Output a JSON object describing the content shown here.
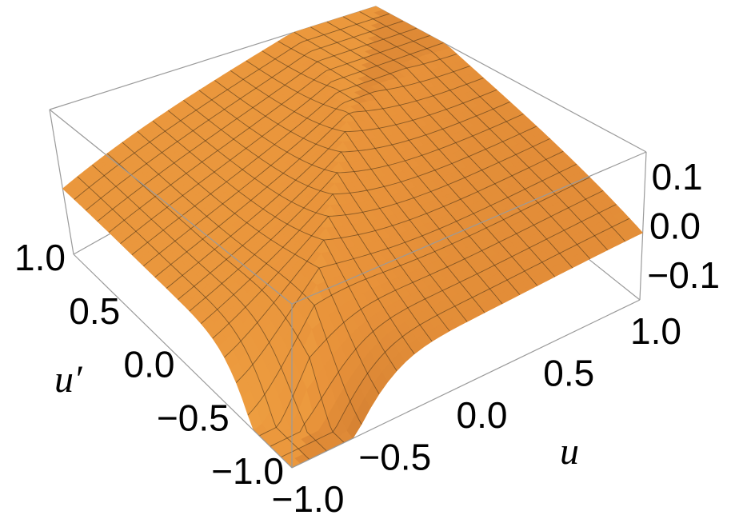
{
  "chart_data": {
    "type": "surface3d",
    "title": "",
    "x_axis": {
      "label": "u",
      "range": [
        -1.0,
        1.0
      ],
      "ticks": [
        "-1.0",
        "-0.5",
        "0.0",
        "0.5",
        "1.0"
      ]
    },
    "y_axis": {
      "label": "u′",
      "range": [
        -1.0,
        1.0
      ],
      "ticks": [
        "-1.0",
        "-0.5",
        "0.0",
        "0.5",
        "1.0"
      ]
    },
    "z_axis": {
      "label": "",
      "range": [
        -0.15,
        0.15
      ],
      "ticks": [
        "-0.1",
        "0.0",
        "0.1"
      ]
    },
    "surface": {
      "description_values": {
        "corner_u-1_u'-1": -0.15,
        "corner_u1_u'-1": 0.05,
        "corner_u-1_u'1": 0.12,
        "corner_u1_u'1": 0.12,
        "ridge_along_diagonal_peak": 0.15
      },
      "mesh_lines_per_axis": 20,
      "colors": {
        "light": "#f6b04a",
        "mid": "#e8923a",
        "dark": "#8a3f15",
        "mesh": "#3a2a14",
        "clip": "#cccccc"
      }
    },
    "box": true,
    "grid": false
  }
}
